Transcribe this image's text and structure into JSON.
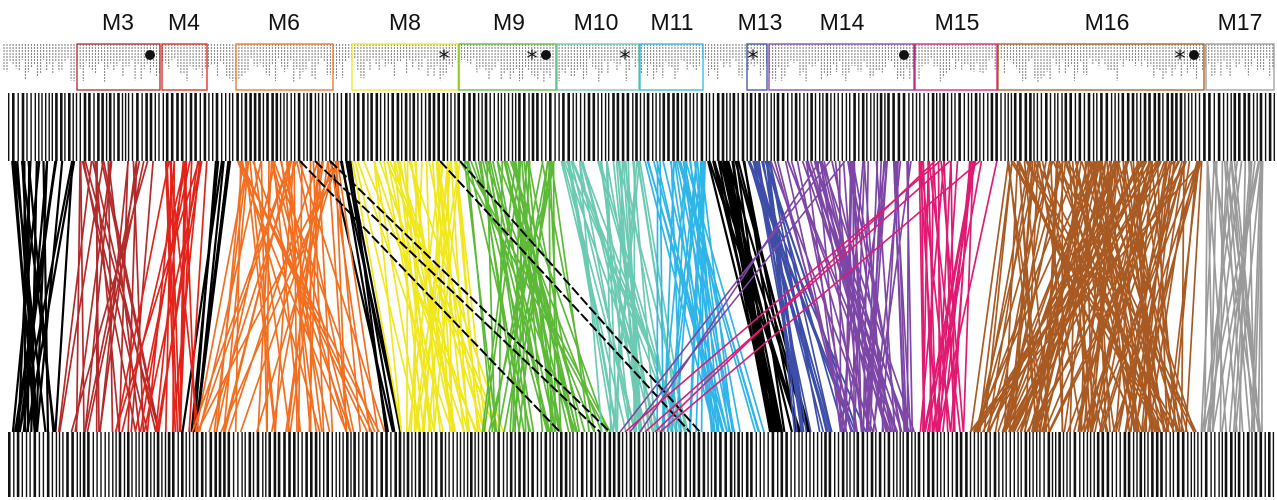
{
  "modules": [
    {
      "label": "M3",
      "color": "#b22a2a",
      "marker": "dot"
    },
    {
      "label": "M4",
      "color": "#e2231a",
      "marker": ""
    },
    {
      "label": "M6",
      "color": "#f26f21",
      "marker": ""
    },
    {
      "label": "M8",
      "color": "#f0e71c",
      "marker": "asterisk"
    },
    {
      "label": "M9",
      "color": "#5cb937",
      "marker": "asterisk-dot"
    },
    {
      "label": "M10",
      "color": "#6ccab3",
      "marker": "asterisk"
    },
    {
      "label": "M11",
      "color": "#2fb5e8",
      "marker": ""
    },
    {
      "label": "M13",
      "color": "#3d4ea8",
      "marker": "asterisk"
    },
    {
      "label": "M14",
      "color": "#7d46a6",
      "marker": "dot"
    },
    {
      "label": "M15",
      "color": "#e01a72",
      "marker": ""
    },
    {
      "label": "M16",
      "color": "#a85a22",
      "marker": "asterisk-dot"
    },
    {
      "label": "M17",
      "color": "#9a9a9a",
      "marker": ""
    }
  ],
  "unlabeled_group_color": "#000000"
}
